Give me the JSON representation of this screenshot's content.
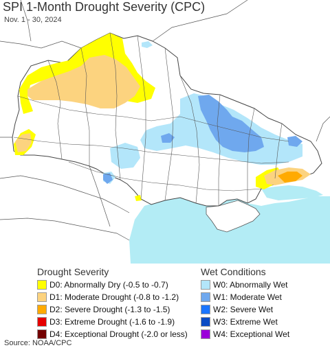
{
  "header": {
    "title": "SPI 1-Month Drought Severity (CPC)",
    "subtitle": "Nov. 1 - 30, 2024"
  },
  "legend": {
    "drought_title": "Drought Severity",
    "wet_title": "Wet Conditions",
    "drought_items": [
      {
        "label": "D0: Abnormally Dry (-0.5 to -0.7)",
        "color": "#ffff00"
      },
      {
        "label": "D1: Moderate Drought (-0.8 to -1.2)",
        "color": "#fcd37f"
      },
      {
        "label": "D2: Severe Drought (-1.3 to -1.5)",
        "color": "#ffaa00"
      },
      {
        "label": "D3: Extreme Drought (-1.6 to -1.9)",
        "color": "#e60000"
      },
      {
        "label": "D4: Exceptional Drought (-2.0 or less)",
        "color": "#730000"
      }
    ],
    "wet_items": [
      {
        "label": "W0: Abnormally Wet",
        "color": "#b3e6fa"
      },
      {
        "label": "W1: Moderate Wet",
        "color": "#6fa8ee"
      },
      {
        "label": "W2: Severe Wet",
        "color": "#1a75ff"
      },
      {
        "label": "W3: Extreme Wet",
        "color": "#0a4bc4"
      },
      {
        "label": "W4: Exceptional Wet",
        "color": "#9b00d9"
      }
    ]
  },
  "source": "Source: NOAA/CPC",
  "colors": {
    "sea": "#b3ecf5",
    "land": "#ffffff",
    "outside": "#ffffff",
    "border": "#555555"
  }
}
